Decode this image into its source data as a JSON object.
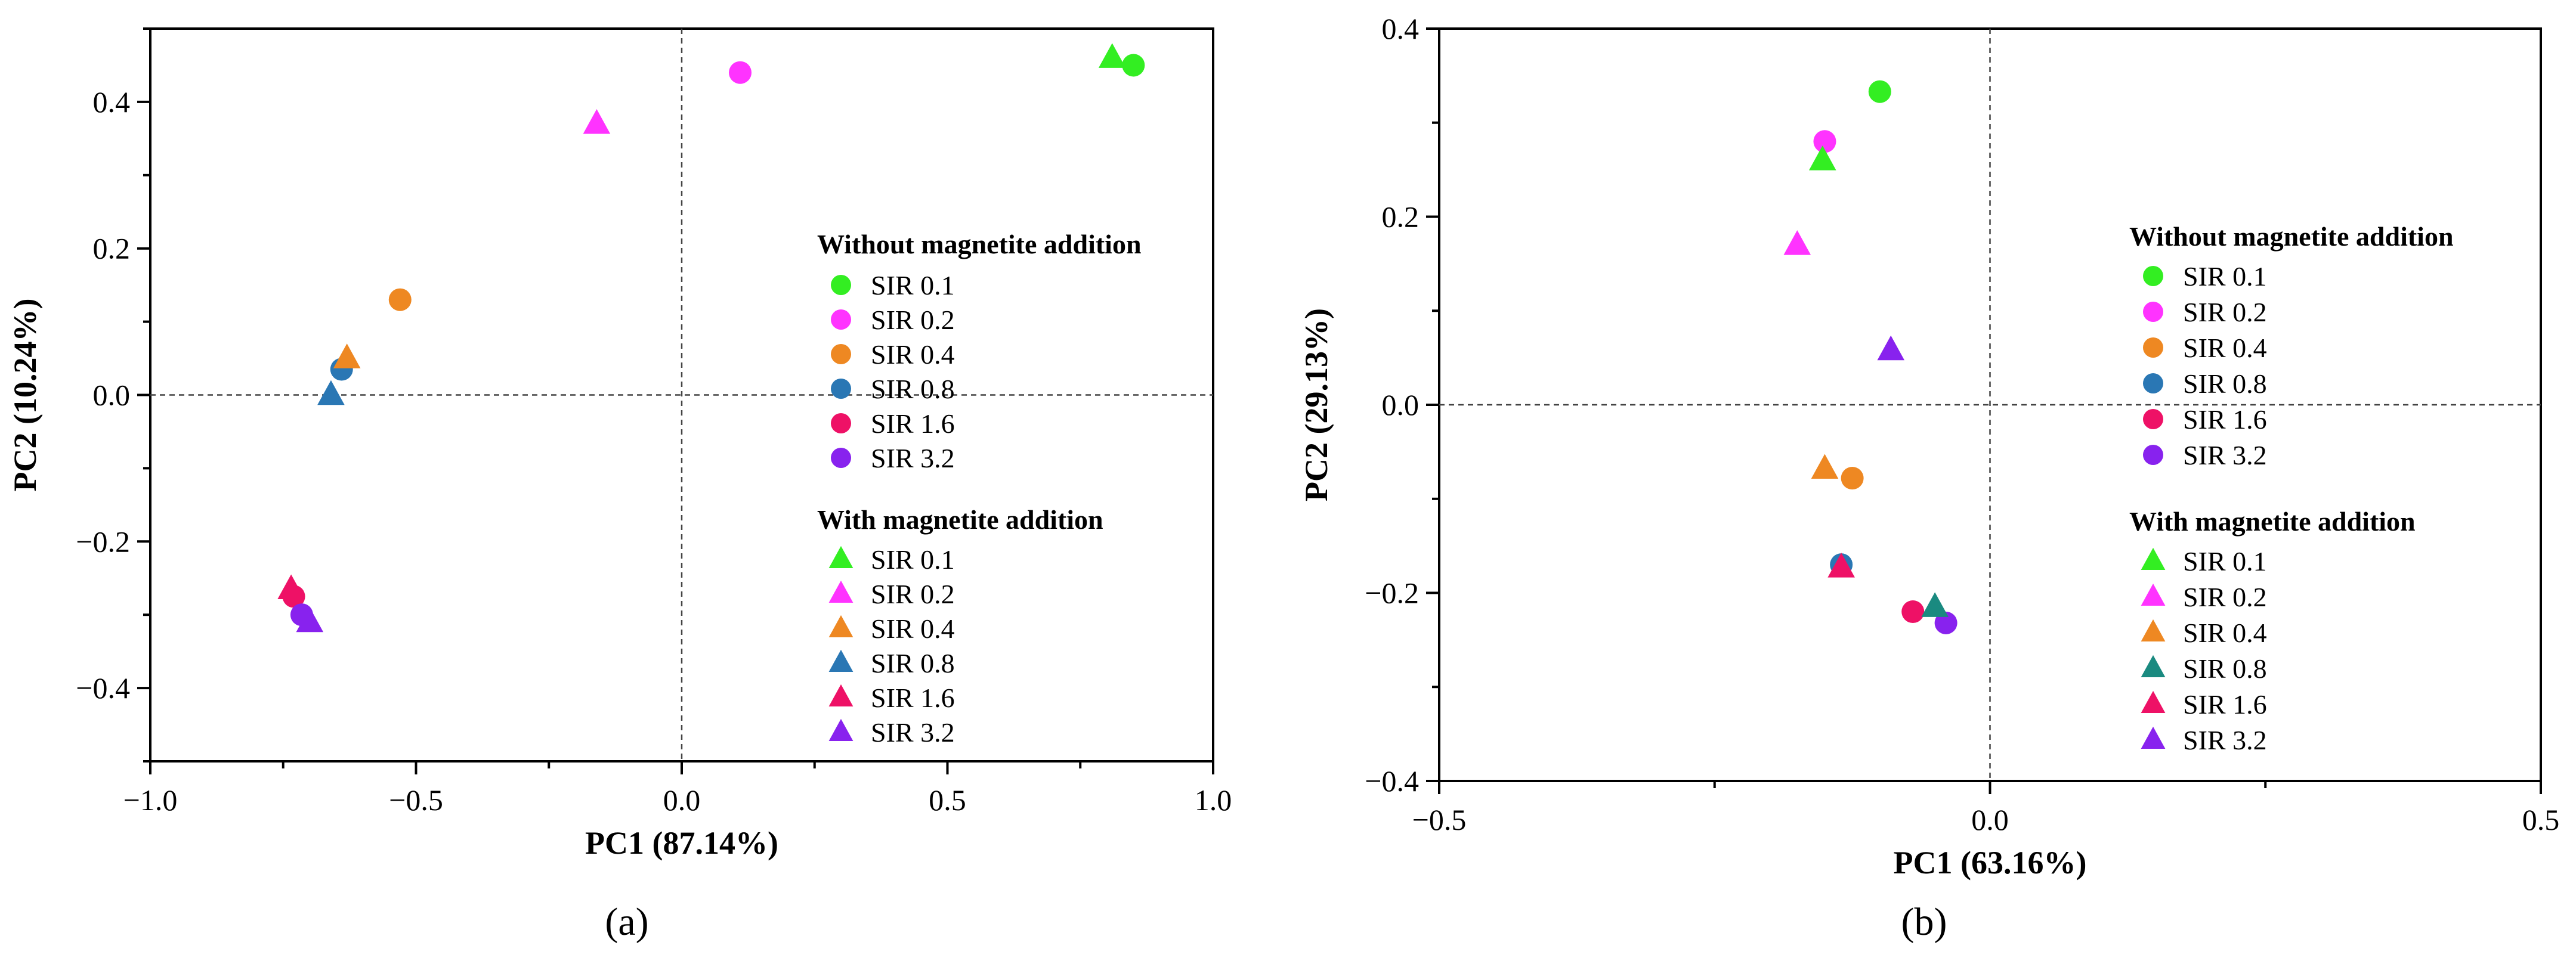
{
  "chart_data": [
    {
      "type": "scatter",
      "panel_label": "(a)",
      "xlabel": "PC1 (87.14%)",
      "ylabel": "PC2 (10.24%)",
      "xlim": [
        -1.0,
        1.0
      ],
      "ylim": [
        -0.5,
        0.5
      ],
      "xticks": [
        -1.0,
        -0.5,
        0.0,
        0.5,
        1.0
      ],
      "xtick_labels": [
        "−1.0",
        "−0.5",
        "0.0",
        "0.5",
        "1.0"
      ],
      "yticks": [
        -0.4,
        -0.2,
        0.0,
        0.2,
        0.4
      ],
      "ytick_labels": [
        "−0.4",
        "−0.2",
        "0.0",
        "0.2",
        "0.4"
      ],
      "reference_lines": {
        "x": 0,
        "y": 0,
        "style": "dashed"
      },
      "legend_position": "right",
      "groups": [
        {
          "heading": "Without magnetite addition",
          "marker": "circle",
          "series": [
            {
              "name": "SIR 0.1",
              "color": "#33ee22",
              "x": 0.85,
              "y": 0.45
            },
            {
              "name": "SIR 0.2",
              "color": "#ff33ff",
              "x": 0.11,
              "y": 0.44
            },
            {
              "name": "SIR 0.4",
              "color": "#ee8822",
              "x": -0.53,
              "y": 0.13
            },
            {
              "name": "SIR 0.8",
              "color": "#2a77b4",
              "x": -0.64,
              "y": 0.035
            },
            {
              "name": "SIR 1.6",
              "color": "#ee1166",
              "x": -0.73,
              "y": -0.275
            },
            {
              "name": "SIR 3.2",
              "color": "#8822ee",
              "x": -0.715,
              "y": -0.3
            }
          ]
        },
        {
          "heading": "With magnetite addition",
          "marker": "triangle",
          "series": [
            {
              "name": "SIR 0.1",
              "color": "#33ee22",
              "x": 0.81,
              "y": 0.46
            },
            {
              "name": "SIR 0.2",
              "color": "#ff33ff",
              "x": -0.16,
              "y": 0.37
            },
            {
              "name": "SIR 0.4",
              "color": "#ee8822",
              "x": -0.63,
              "y": 0.05
            },
            {
              "name": "SIR 0.8",
              "color": "#2a77b4",
              "x": -0.66,
              "y": 0.0
            },
            {
              "name": "SIR 1.6",
              "color": "#ee1166",
              "x": -0.735,
              "y": -0.265
            },
            {
              "name": "SIR 3.2",
              "color": "#8822ee",
              "x": -0.7,
              "y": -0.31
            }
          ]
        }
      ]
    },
    {
      "type": "scatter",
      "panel_label": "(b)",
      "xlabel": "PC1 (63.16%)",
      "ylabel": "PC2 (29.13%)",
      "xlim": [
        -0.5,
        0.5
      ],
      "ylim": [
        -0.4,
        0.4
      ],
      "xticks": [
        -0.5,
        0.0,
        0.5
      ],
      "xtick_labels": [
        "−0.5",
        "0.0",
        "0.5"
      ],
      "yticks": [
        -0.4,
        -0.2,
        0.0,
        0.2,
        0.4
      ],
      "ytick_labels": [
        "−0.4",
        "−0.2",
        "0.0",
        "0.2",
        "0.4"
      ],
      "reference_lines": {
        "x": 0,
        "y": 0,
        "style": "dashed"
      },
      "legend_position": "right",
      "groups": [
        {
          "heading": "Without magnetite addition",
          "marker": "circle",
          "series": [
            {
              "name": "SIR 0.1",
              "color": "#33ee22",
              "x": -0.1,
              "y": 0.333
            },
            {
              "name": "SIR 0.2",
              "color": "#ff33ff",
              "x": -0.15,
              "y": 0.28
            },
            {
              "name": "SIR 0.4",
              "color": "#ee8822",
              "x": -0.125,
              "y": -0.078
            },
            {
              "name": "SIR 0.8",
              "color": "#2a77b4",
              "x": -0.135,
              "y": -0.17
            },
            {
              "name": "SIR 1.6",
              "color": "#ee1166",
              "x": -0.07,
              "y": -0.22
            },
            {
              "name": "SIR 3.2",
              "color": "#8822ee",
              "x": -0.04,
              "y": -0.232
            }
          ]
        },
        {
          "heading": "With magnetite addition",
          "marker": "triangle",
          "series": [
            {
              "name": "SIR 0.1",
              "color": "#33ee22",
              "x": -0.152,
              "y": 0.26
            },
            {
              "name": "SIR 0.2",
              "color": "#ff33ff",
              "x": -0.175,
              "y": 0.17
            },
            {
              "name": "SIR 0.4",
              "color": "#ee8822",
              "x": -0.15,
              "y": -0.068
            },
            {
              "name": "SIR 0.8",
              "color": "#1a8a80",
              "x": -0.05,
              "y": -0.215
            },
            {
              "name": "SIR 1.6",
              "color": "#ee1166",
              "x": -0.135,
              "y": -0.173
            },
            {
              "name": "SIR 3.2",
              "color": "#8822ee",
              "x": -0.09,
              "y": 0.058
            }
          ]
        }
      ]
    }
  ]
}
